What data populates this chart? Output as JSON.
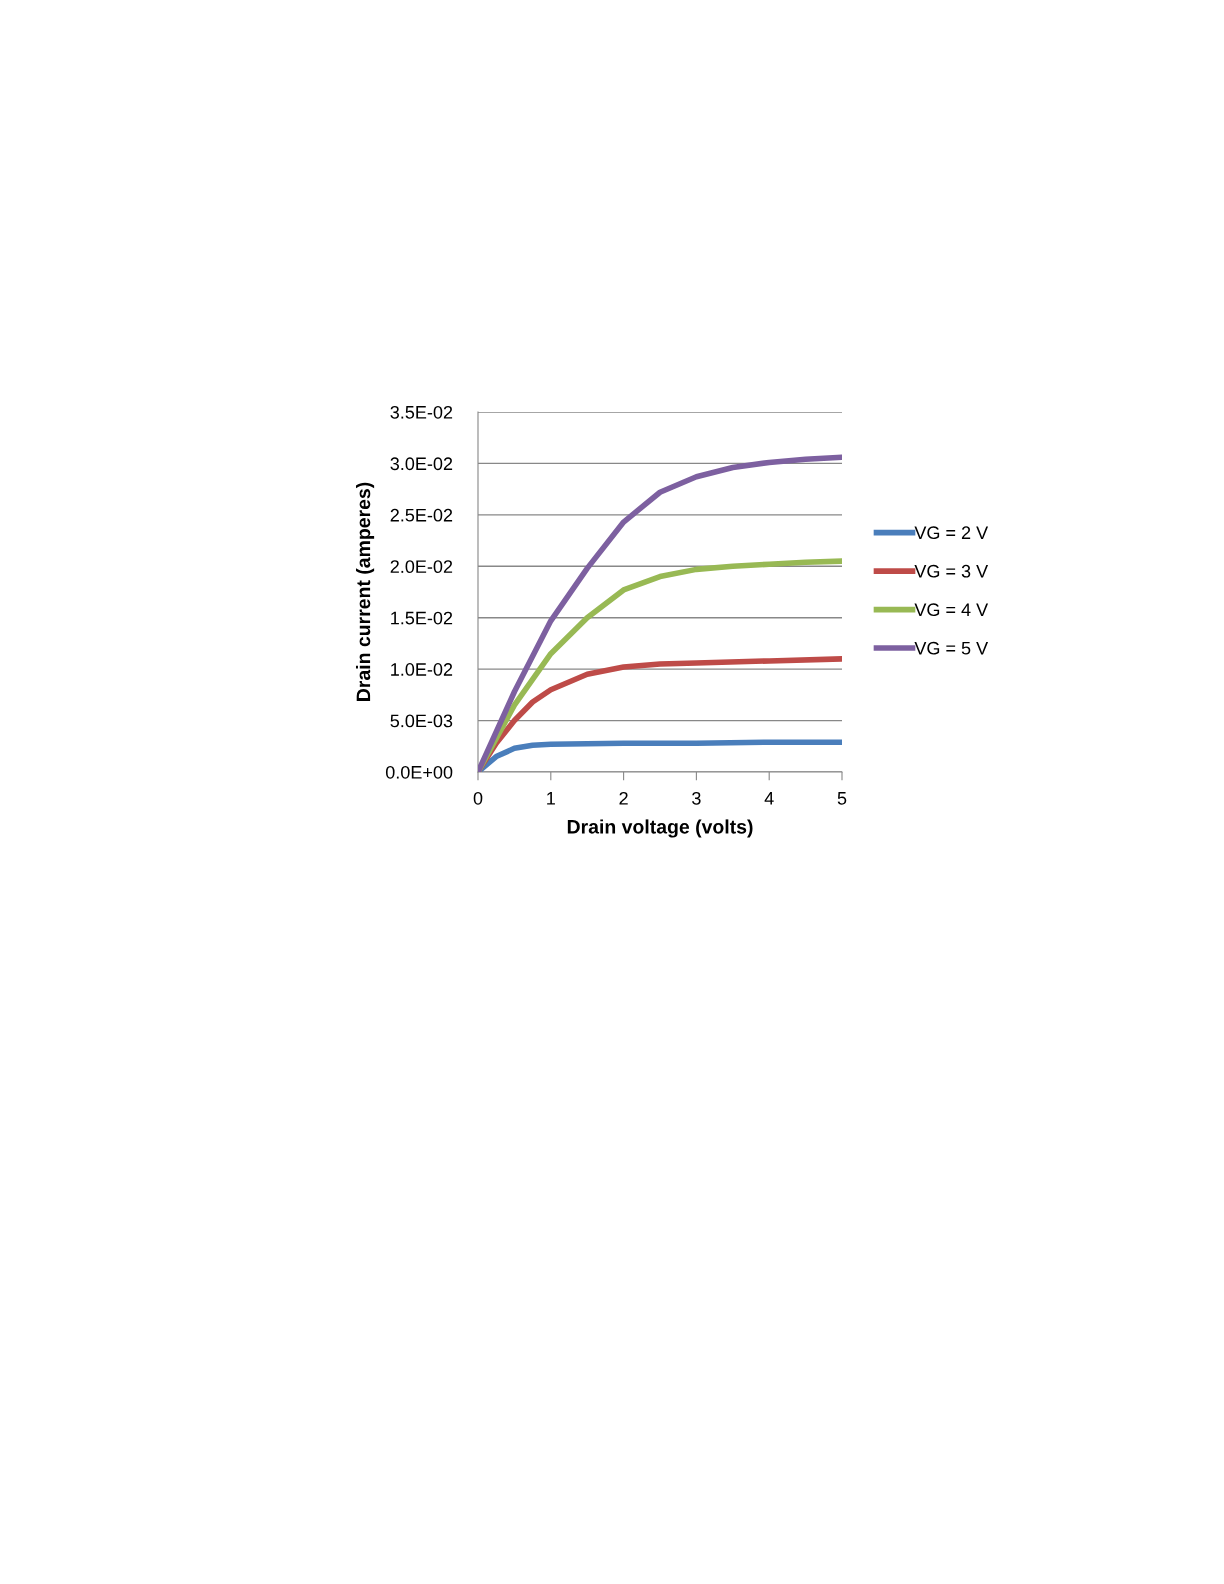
{
  "chart_data": {
    "type": "line",
    "xlabel": "Drain voltage (volts)",
    "ylabel": "Drain current (amperes)",
    "xlim": [
      0,
      5
    ],
    "xticks": [
      0,
      1,
      2,
      3,
      4,
      5
    ],
    "ylim": [
      0,
      0.035
    ],
    "yticks": [
      {
        "value": 0,
        "label": "0.0E+00"
      },
      {
        "value": 0.005,
        "label": "5.0E-03"
      },
      {
        "value": 0.01,
        "label": "1.0E-02"
      },
      {
        "value": 0.015,
        "label": "1.5E-02"
      },
      {
        "value": 0.02,
        "label": "2.0E-02"
      },
      {
        "value": 0.025,
        "label": "2.5E-02"
      },
      {
        "value": 0.03,
        "label": "3.0E-02"
      },
      {
        "value": 0.035,
        "label": "3.5E-02"
      }
    ],
    "grid": "y",
    "legend": "right",
    "marker": "none",
    "line_style": "solid",
    "series": [
      {
        "name": "VG = 2 V",
        "color": "#4a7ebb",
        "x": [
          0,
          0.25,
          0.5,
          0.75,
          1,
          2,
          3,
          4,
          5
        ],
        "values": [
          0,
          0.0015,
          0.0023,
          0.0026,
          0.0027,
          0.0028,
          0.0028,
          0.0029,
          0.0029
        ]
      },
      {
        "name": "VG = 3 V",
        "color": "#be4b48",
        "x": [
          0,
          0.25,
          0.5,
          0.75,
          1,
          1.5,
          2,
          2.5,
          3,
          4,
          5
        ],
        "values": [
          0,
          0.0028,
          0.005,
          0.0068,
          0.008,
          0.0095,
          0.0102,
          0.0105,
          0.0106,
          0.0108,
          0.011
        ]
      },
      {
        "name": "VG = 4 V",
        "color": "#98b954",
        "x": [
          0,
          0.5,
          1,
          1.5,
          2,
          2.5,
          3,
          3.5,
          4,
          4.5,
          5
        ],
        "values": [
          0,
          0.0065,
          0.0115,
          0.015,
          0.0177,
          0.019,
          0.0197,
          0.02,
          0.0202,
          0.0204,
          0.0205
        ]
      },
      {
        "name": "VG = 5 V",
        "color": "#7d60a0",
        "x": [
          0,
          0.5,
          1,
          1.5,
          2,
          2.5,
          3,
          3.5,
          4,
          4.5,
          5
        ],
        "values": [
          0,
          0.0078,
          0.0147,
          0.0198,
          0.0243,
          0.0272,
          0.0287,
          0.0296,
          0.0301,
          0.0304,
          0.0306
        ]
      }
    ]
  }
}
